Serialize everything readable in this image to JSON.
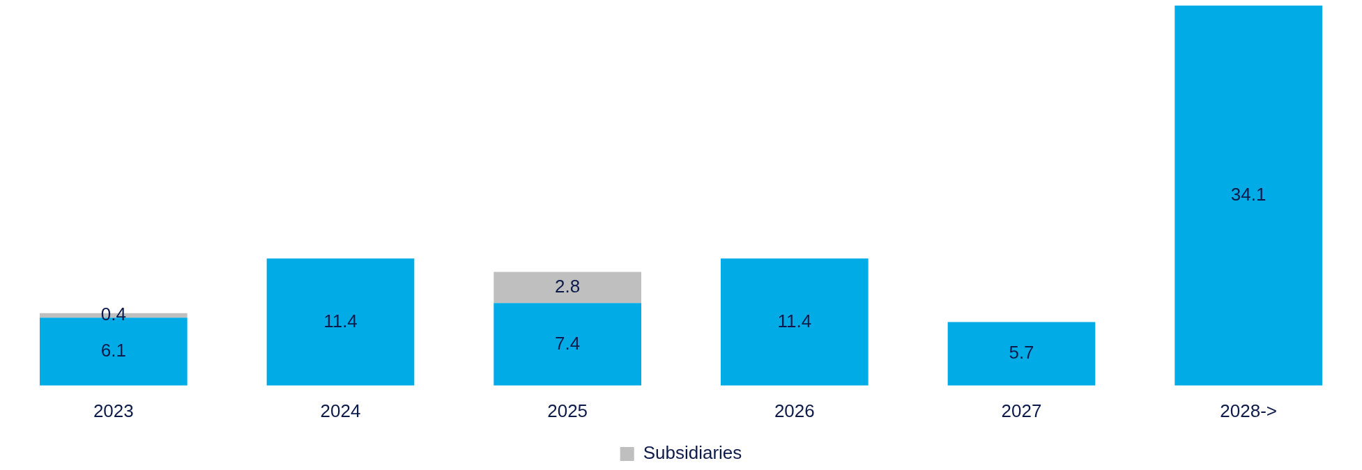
{
  "chart_data": {
    "type": "bar",
    "stacked": true,
    "categories": [
      "2023",
      "2024",
      "2025",
      "2026",
      "2027",
      "2028->"
    ],
    "series": [
      {
        "color": "#00abe6",
        "values": [
          6.1,
          11.4,
          7.4,
          11.4,
          5.7,
          34.1
        ]
      },
      {
        "name": "Subsidiaries",
        "color": "#bfbfbf",
        "values": [
          0.4,
          null,
          2.8,
          null,
          null,
          null
        ]
      }
    ],
    "data_labels": true,
    "grid": false,
    "legend": "bottom",
    "tick_labels": "x"
  }
}
